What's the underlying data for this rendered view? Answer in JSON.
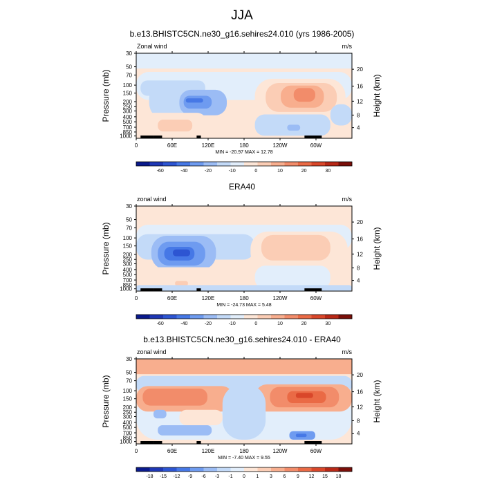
{
  "page": {
    "title": "JJA"
  },
  "chart_data": [
    {
      "type": "heatmap",
      "title": "b.e13.BHISTC5CN.ne30_g16.sehires24.010 (yrs 1986-2005)",
      "left_label": "Zonal wind",
      "right_label": "m/s",
      "ylabel": "Pressure (mb)",
      "y2label": "Height (km)",
      "x_ticks": [
        "0",
        "60E",
        "120E",
        "180",
        "120W",
        "60W"
      ],
      "y_ticks": [
        "30",
        "50",
        "70",
        "100",
        "150",
        "200",
        "250",
        "300",
        "400",
        "500",
        "700",
        "850",
        "1000"
      ],
      "y2_ticks": [
        "20",
        "16",
        "12",
        "8",
        "4"
      ],
      "stats": "MIN = -20.97  MAX = 12.78",
      "colorbar_labels": [
        "-60",
        "-40",
        "-20",
        "-10",
        "0",
        "10",
        "20",
        "30"
      ],
      "colors": [
        "#0a1a8c",
        "#1e37b4",
        "#2d55d2",
        "#4678e6",
        "#6e9bf0",
        "#9bbcf5",
        "#c3daf8",
        "#e2eefb",
        "#fde6d7",
        "#fbcdb5",
        "#f8ae8e",
        "#f28c6a",
        "#ea6a45",
        "#d9472a",
        "#b82816",
        "#7a0f09"
      ]
    },
    {
      "type": "heatmap",
      "title": "ERA40",
      "left_label": "zonal wind",
      "right_label": "m/s",
      "ylabel": "Pressure (mb)",
      "y2label": "Height (km)",
      "x_ticks": [
        "0",
        "60E",
        "120E",
        "180",
        "120W",
        "60W"
      ],
      "y_ticks": [
        "30",
        "50",
        "70",
        "100",
        "150",
        "200",
        "250",
        "300",
        "400",
        "500",
        "700",
        "850",
        "1000"
      ],
      "y2_ticks": [
        "20",
        "16",
        "12",
        "8",
        "4"
      ],
      "stats": "MIN = -24.73  MAX =  5.48",
      "colorbar_labels": [
        "-60",
        "-40",
        "-20",
        "-10",
        "0",
        "10",
        "20",
        "30"
      ],
      "colors": [
        "#0a1a8c",
        "#1e37b4",
        "#2d55d2",
        "#4678e6",
        "#6e9bf0",
        "#9bbcf5",
        "#c3daf8",
        "#e2eefb",
        "#fde6d7",
        "#fbcdb5",
        "#f8ae8e",
        "#f28c6a",
        "#ea6a45",
        "#d9472a",
        "#b82816",
        "#7a0f09"
      ]
    },
    {
      "type": "heatmap",
      "title": "b.e13.BHISTC5CN.ne30_g16.sehires24.010 - ERA40",
      "left_label": "zonal wind",
      "right_label": "m/s",
      "ylabel": "Pressure (mb)",
      "y2label": "Height (km)",
      "x_ticks": [
        "0",
        "60E",
        "120E",
        "180",
        "120W",
        "60W"
      ],
      "y_ticks": [
        "30",
        "50",
        "70",
        "100",
        "150",
        "200",
        "250",
        "300",
        "400",
        "500",
        "700",
        "850",
        "1000"
      ],
      "y2_ticks": [
        "20",
        "16",
        "12",
        "8",
        "4"
      ],
      "stats": "MIN = -7.40  MAX =  9.55",
      "colorbar_labels": [
        "-18",
        "-15",
        "-12",
        "-9",
        "-6",
        "-3",
        "-1",
        "0",
        "1",
        "3",
        "6",
        "9",
        "12",
        "15",
        "18"
      ],
      "colors": [
        "#0a1a8c",
        "#1e37b4",
        "#2d55d2",
        "#4678e6",
        "#6e9bf0",
        "#9bbcf5",
        "#c3daf8",
        "#e2eefb",
        "#fde6d7",
        "#fbcdb5",
        "#f8ae8e",
        "#f28c6a",
        "#ea6a45",
        "#d9472a",
        "#b82816",
        "#7a0f09"
      ]
    }
  ]
}
